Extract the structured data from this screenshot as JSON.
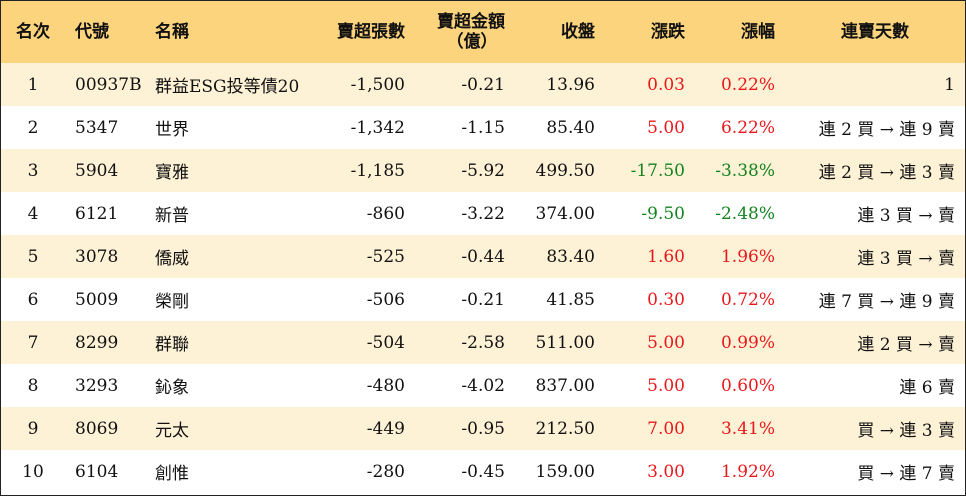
{
  "headers": {
    "rank": "名次",
    "code": "代號",
    "name": "名稱",
    "net_sell_lots": "賣超張數",
    "net_sell_amount": "賣超金額",
    "net_sell_amount_unit": "（億）",
    "close": "收盤",
    "change": "漲跌",
    "change_pct": "漲幅",
    "streak": "連賣天數"
  },
  "rows": [
    {
      "rank": "1",
      "code": "00937B",
      "name": "群益ESG投等債20",
      "lots": "-1,500",
      "amount": "-0.21",
      "close": "13.96",
      "change": "0.03",
      "pct": "0.22%",
      "dir": "up",
      "streak": "1"
    },
    {
      "rank": "2",
      "code": "5347",
      "name": "世界",
      "lots": "-1,342",
      "amount": "-1.15",
      "close": "85.40",
      "change": "5.00",
      "pct": "6.22%",
      "dir": "up",
      "streak": "連 2 買 → 連 9 賣"
    },
    {
      "rank": "3",
      "code": "5904",
      "name": "寶雅",
      "lots": "-1,185",
      "amount": "-5.92",
      "close": "499.50",
      "change": "-17.50",
      "pct": "-3.38%",
      "dir": "down",
      "streak": "連 2 買 → 連 3 賣"
    },
    {
      "rank": "4",
      "code": "6121",
      "name": "新普",
      "lots": "-860",
      "amount": "-3.22",
      "close": "374.00",
      "change": "-9.50",
      "pct": "-2.48%",
      "dir": "down",
      "streak": "連 3 買 → 賣"
    },
    {
      "rank": "5",
      "code": "3078",
      "name": "僑威",
      "lots": "-525",
      "amount": "-0.44",
      "close": "83.40",
      "change": "1.60",
      "pct": "1.96%",
      "dir": "up",
      "streak": "連 3 買 → 賣"
    },
    {
      "rank": "6",
      "code": "5009",
      "name": "榮剛",
      "lots": "-506",
      "amount": "-0.21",
      "close": "41.85",
      "change": "0.30",
      "pct": "0.72%",
      "dir": "up",
      "streak": "連 7 買 → 連 9 賣"
    },
    {
      "rank": "7",
      "code": "8299",
      "name": "群聯",
      "lots": "-504",
      "amount": "-2.58",
      "close": "511.00",
      "change": "5.00",
      "pct": "0.99%",
      "dir": "up",
      "streak": "連 2 買 → 賣"
    },
    {
      "rank": "8",
      "code": "3293",
      "name": "鈊象",
      "lots": "-480",
      "amount": "-4.02",
      "close": "837.00",
      "change": "5.00",
      "pct": "0.60%",
      "dir": "up",
      "streak": "連 6 賣"
    },
    {
      "rank": "9",
      "code": "8069",
      "name": "元太",
      "lots": "-449",
      "amount": "-0.95",
      "close": "212.50",
      "change": "7.00",
      "pct": "3.41%",
      "dir": "up",
      "streak": "買 → 連 3 賣"
    },
    {
      "rank": "10",
      "code": "6104",
      "name": "創惟",
      "lots": "-280",
      "amount": "-0.45",
      "close": "159.00",
      "change": "3.00",
      "pct": "1.92%",
      "dir": "up",
      "streak": "買 → 連 7 賣"
    }
  ],
  "colors": {
    "header_bg": "#fcd47e",
    "odd_row_bg": "#fdf1d6",
    "even_row_bg": "#ffffff",
    "up": "#e8191c",
    "down": "#15831f"
  }
}
